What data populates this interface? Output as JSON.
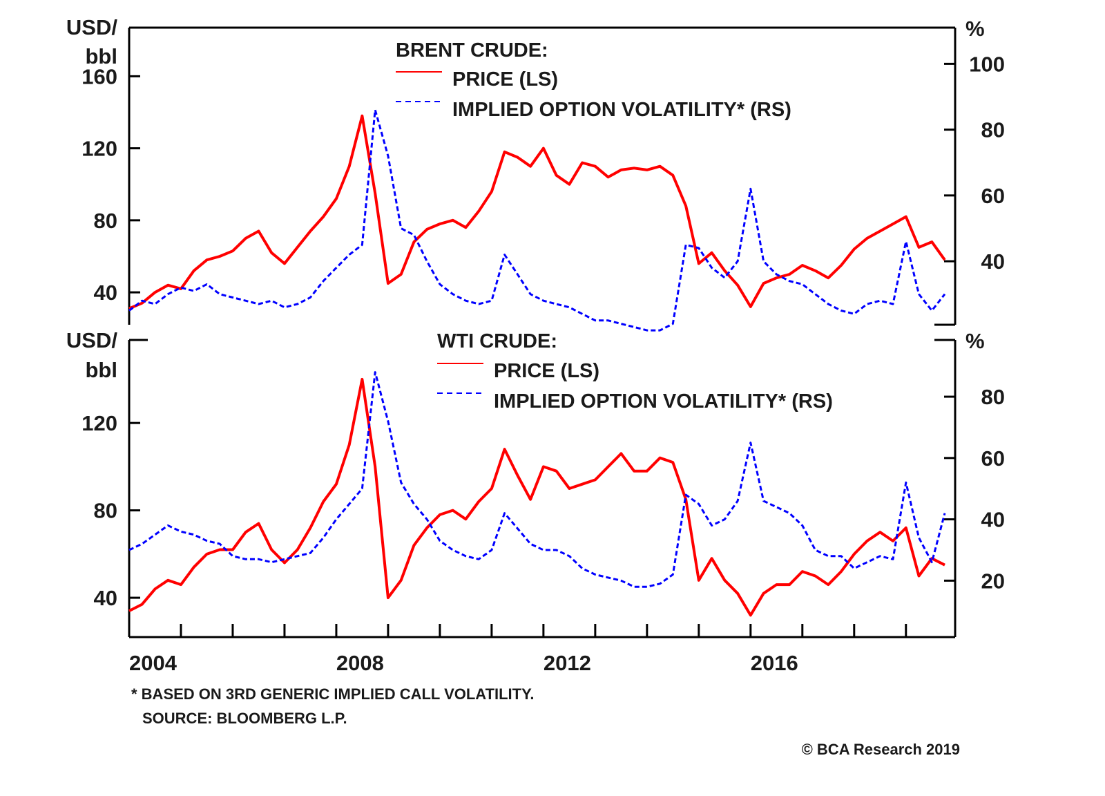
{
  "chart_data": [
    {
      "type": "line",
      "title": "BRENT CRUDE:",
      "panel": "top",
      "y_left_label": [
        "USD/",
        "bbl"
      ],
      "y_right_label": "%",
      "y_left_ticks": [
        40,
        80,
        120,
        160
      ],
      "y_right_ticks": [
        40,
        60,
        80,
        100
      ],
      "y_left_range": [
        22,
        187
      ],
      "y_right_range": [
        20.7,
        111
      ],
      "legend": [
        {
          "name": "PRICE (LS)",
          "color": "#ff0000",
          "style": "solid",
          "axis": "left"
        },
        {
          "name": "IMPLIED OPTION VOLATILITY* (RS)",
          "color": "#0000ff",
          "style": "dashed",
          "axis": "right"
        }
      ],
      "legend_position": "top-center",
      "x": [
        2004.0,
        2004.25,
        2004.5,
        2004.75,
        2005.0,
        2005.25,
        2005.5,
        2005.75,
        2006.0,
        2006.25,
        2006.5,
        2006.75,
        2007.0,
        2007.25,
        2007.5,
        2007.75,
        2008.0,
        2008.25,
        2008.5,
        2008.75,
        2009.0,
        2009.25,
        2009.5,
        2009.75,
        2010.0,
        2010.25,
        2010.5,
        2010.75,
        2011.0,
        2011.25,
        2011.5,
        2011.75,
        2012.0,
        2012.25,
        2012.5,
        2012.75,
        2013.0,
        2013.25,
        2013.5,
        2013.75,
        2014.0,
        2014.25,
        2014.5,
        2014.75,
        2015.0,
        2015.25,
        2015.5,
        2015.75,
        2016.0,
        2016.25,
        2016.5,
        2016.75,
        2017.0,
        2017.25,
        2017.5,
        2017.75,
        2018.0,
        2018.25,
        2018.5,
        2018.75,
        2019.0,
        2019.25,
        2019.5,
        2019.75
      ],
      "series": [
        {
          "name": "PRICE (LS)",
          "axis": "left",
          "values": [
            31,
            34,
            40,
            44,
            42,
            52,
            58,
            60,
            63,
            70,
            74,
            62,
            56,
            65,
            74,
            82,
            92,
            110,
            138,
            95,
            45,
            50,
            68,
            75,
            78,
            80,
            76,
            85,
            96,
            118,
            115,
            110,
            120,
            105,
            100,
            112,
            110,
            104,
            108,
            109,
            108,
            110,
            105,
            88,
            56,
            62,
            52,
            44,
            32,
            45,
            48,
            50,
            55,
            52,
            48,
            55,
            64,
            70,
            74,
            78,
            82,
            65,
            68,
            58
          ]
        },
        {
          "name": "IMPLIED OPTION VOLATILITY* (RS)",
          "axis": "right",
          "values": [
            25,
            28,
            27,
            30,
            32,
            31,
            33,
            30,
            29,
            28,
            27,
            28,
            26,
            27,
            29,
            34,
            38,
            42,
            45,
            86,
            72,
            50,
            48,
            40,
            33,
            30,
            28,
            27,
            28,
            42,
            36,
            30,
            28,
            27,
            26,
            24,
            22,
            22,
            21,
            20,
            19,
            19,
            21,
            45,
            44,
            38,
            35,
            40,
            62,
            40,
            36,
            34,
            33,
            30,
            27,
            25,
            24,
            27,
            28,
            27,
            46,
            30,
            25,
            30
          ]
        }
      ]
    },
    {
      "type": "line",
      "title": "WTI CRUDE:",
      "panel": "bottom",
      "y_left_label": [
        "USD/",
        "bbl"
      ],
      "y_right_label": "%",
      "y_left_ticks": [
        40,
        80,
        120
      ],
      "y_right_ticks": [
        20,
        40,
        60,
        80
      ],
      "y_left_range": [
        22,
        158
      ],
      "y_right_range": [
        1.6,
        98.5
      ],
      "legend": [
        {
          "name": "PRICE (LS)",
          "color": "#ff0000",
          "style": "solid",
          "axis": "left"
        },
        {
          "name": "IMPLIED OPTION VOLATILITY* (RS)",
          "color": "#0000ff",
          "style": "dashed",
          "axis": "right"
        }
      ],
      "legend_position": "top-center",
      "x": [
        2004.0,
        2004.25,
        2004.5,
        2004.75,
        2005.0,
        2005.25,
        2005.5,
        2005.75,
        2006.0,
        2006.25,
        2006.5,
        2006.75,
        2007.0,
        2007.25,
        2007.5,
        2007.75,
        2008.0,
        2008.25,
        2008.5,
        2008.75,
        2009.0,
        2009.25,
        2009.5,
        2009.75,
        2010.0,
        2010.25,
        2010.5,
        2010.75,
        2011.0,
        2011.25,
        2011.5,
        2011.75,
        2012.0,
        2012.25,
        2012.5,
        2012.75,
        2013.0,
        2013.25,
        2013.5,
        2013.75,
        2014.0,
        2014.25,
        2014.5,
        2014.75,
        2015.0,
        2015.25,
        2015.5,
        2015.75,
        2016.0,
        2016.25,
        2016.5,
        2016.75,
        2017.0,
        2017.25,
        2017.5,
        2017.75,
        2018.0,
        2018.25,
        2018.5,
        2018.75,
        2019.0,
        2019.25,
        2019.5,
        2019.75
      ],
      "series": [
        {
          "name": "PRICE (LS)",
          "axis": "left",
          "values": [
            34,
            37,
            44,
            48,
            46,
            54,
            60,
            62,
            62,
            70,
            74,
            62,
            56,
            62,
            72,
            84,
            92,
            110,
            140,
            100,
            40,
            48,
            64,
            72,
            78,
            80,
            76,
            84,
            90,
            108,
            96,
            85,
            100,
            98,
            90,
            92,
            94,
            100,
            106,
            98,
            98,
            104,
            102,
            85,
            48,
            58,
            48,
            42,
            32,
            42,
            46,
            46,
            52,
            50,
            46,
            52,
            60,
            66,
            70,
            66,
            72,
            50,
            58,
            55
          ]
        },
        {
          "name": "IMPLIED OPTION VOLATILITY* (RS)",
          "axis": "right",
          "values": [
            30,
            32,
            35,
            38,
            36,
            35,
            33,
            32,
            28,
            27,
            27,
            26,
            27,
            28,
            29,
            34,
            40,
            45,
            50,
            88,
            72,
            52,
            45,
            40,
            33,
            30,
            28,
            27,
            30,
            42,
            37,
            32,
            30,
            30,
            28,
            24,
            22,
            21,
            20,
            18,
            18,
            19,
            22,
            48,
            45,
            38,
            40,
            46,
            65,
            46,
            44,
            42,
            38,
            30,
            28,
            28,
            24,
            26,
            28,
            27,
            52,
            34,
            26,
            42
          ]
        }
      ]
    }
  ],
  "x_axis": {
    "tick_labels": [
      "2004",
      "2008",
      "2012",
      "2016"
    ],
    "range": [
      2004,
      2019.95
    ]
  },
  "footnotes": {
    "note": "* BASED ON 3RD GENERIC IMPLIED CALL VOLATILITY.",
    "source": "SOURCE: BLOOMBERG L.P."
  },
  "copyright": "© BCA Research 2019",
  "colors": {
    "price": "#ff0000",
    "volatility": "#0000ff",
    "axis": "#000000"
  }
}
